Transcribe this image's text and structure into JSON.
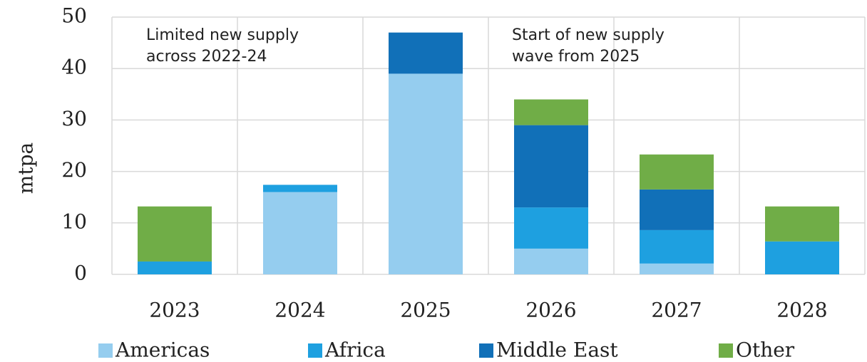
{
  "chart_data": {
    "type": "stacked-bar",
    "y_label": "mtpa",
    "annotations": [
      [
        "Limited new supply",
        "across 2022-24"
      ],
      [
        "Start of new supply",
        "wave from 2025"
      ]
    ],
    "categories": [
      "2023",
      "2024",
      "2025",
      "2026",
      "2027",
      "2028"
    ],
    "series": [
      {
        "name": "Americas",
        "color": "#95cdef",
        "values": [
          0,
          16,
          39,
          5,
          2.1,
          0
        ]
      },
      {
        "name": "Africa",
        "color": "#1ea0e0",
        "values": [
          2.5,
          1.4,
          0,
          8,
          6.5,
          6.4
        ]
      },
      {
        "name": "Middle East",
        "color": "#1170b8",
        "values": [
          0,
          0,
          8,
          16,
          7.9,
          0
        ]
      },
      {
        "name": "Other",
        "color": "#70ad47",
        "values": [
          10.7,
          0,
          0,
          5,
          6.8,
          6.8
        ]
      }
    ],
    "ylim": [
      0,
      50
    ],
    "yticks": [
      0,
      10,
      20,
      30,
      40,
      50
    ],
    "grid": true
  }
}
